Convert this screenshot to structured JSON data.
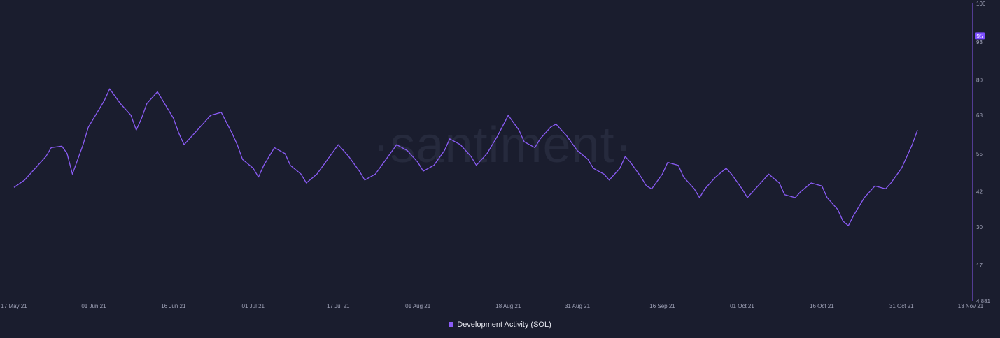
{
  "watermark": "·santiment·",
  "colors": {
    "background": "#1a1d2e",
    "line": "#8b5cf6",
    "badge": "#7c4dff",
    "axis": "#8b5cf6"
  },
  "chart_data": {
    "type": "line",
    "ylim": [
      4.881,
      106
    ],
    "y_ticks": [
      "106",
      "93",
      "80",
      "68",
      "55",
      "42",
      "30",
      "17",
      "4.881"
    ],
    "y_tick_values": [
      106,
      93,
      80,
      68,
      55,
      42,
      30,
      17,
      4.881
    ],
    "x_ticks": [
      "17 May 21",
      "01 Jun 21",
      "16 Jun 21",
      "01 Jul 21",
      "17 Jul 21",
      "01 Aug 21",
      "18 Aug 21",
      "31 Aug 21",
      "16 Sep 21",
      "01 Oct 21",
      "16 Oct 21",
      "31 Oct 21",
      "13 Nov 21"
    ],
    "x_tick_dates": [
      "2021-05-17",
      "2021-06-01",
      "2021-06-16",
      "2021-07-01",
      "2021-07-17",
      "2021-08-01",
      "2021-08-18",
      "2021-08-31",
      "2021-09-16",
      "2021-10-01",
      "2021-10-16",
      "2021-10-31",
      "2021-11-13"
    ],
    "current_value_label": "95",
    "current_value": 95,
    "series": [
      {
        "name": "Development Activity (SOL)",
        "points": [
          [
            "2021-05-17",
            43.5
          ],
          [
            "2021-05-19",
            46
          ],
          [
            "2021-05-21",
            50
          ],
          [
            "2021-05-23",
            54
          ],
          [
            "2021-05-24",
            57
          ],
          [
            "2021-05-26",
            57.5
          ],
          [
            "2021-05-27",
            55
          ],
          [
            "2021-05-28",
            48
          ],
          [
            "2021-05-30",
            58
          ],
          [
            "2021-05-31",
            64
          ],
          [
            "2021-06-02",
            70
          ],
          [
            "2021-06-03",
            73
          ],
          [
            "2021-06-04",
            77
          ],
          [
            "2021-06-06",
            72
          ],
          [
            "2021-06-08",
            68
          ],
          [
            "2021-06-09",
            63
          ],
          [
            "2021-06-10",
            67
          ],
          [
            "2021-06-11",
            72
          ],
          [
            "2021-06-13",
            76
          ],
          [
            "2021-06-14",
            73
          ],
          [
            "2021-06-16",
            67
          ],
          [
            "2021-06-17",
            62
          ],
          [
            "2021-06-18",
            58
          ],
          [
            "2021-06-20",
            62
          ],
          [
            "2021-06-22",
            66
          ],
          [
            "2021-06-23",
            68
          ],
          [
            "2021-06-25",
            69
          ],
          [
            "2021-06-27",
            62
          ],
          [
            "2021-06-28",
            58
          ],
          [
            "2021-06-29",
            53
          ],
          [
            "2021-07-01",
            50
          ],
          [
            "2021-07-02",
            47
          ],
          [
            "2021-07-03",
            51
          ],
          [
            "2021-07-05",
            57
          ],
          [
            "2021-07-07",
            55
          ],
          [
            "2021-07-08",
            51
          ],
          [
            "2021-07-10",
            48
          ],
          [
            "2021-07-11",
            45
          ],
          [
            "2021-07-13",
            48
          ],
          [
            "2021-07-15",
            53
          ],
          [
            "2021-07-17",
            58
          ],
          [
            "2021-07-19",
            54
          ],
          [
            "2021-07-21",
            49
          ],
          [
            "2021-07-22",
            46
          ],
          [
            "2021-07-24",
            48
          ],
          [
            "2021-07-26",
            53
          ],
          [
            "2021-07-28",
            58
          ],
          [
            "2021-07-30",
            56
          ],
          [
            "2021-08-01",
            52
          ],
          [
            "2021-08-02",
            49
          ],
          [
            "2021-08-04",
            51
          ],
          [
            "2021-08-06",
            56
          ],
          [
            "2021-08-07",
            60
          ],
          [
            "2021-08-09",
            58
          ],
          [
            "2021-08-11",
            54
          ],
          [
            "2021-08-12",
            51
          ],
          [
            "2021-08-14",
            55
          ],
          [
            "2021-08-16",
            61
          ],
          [
            "2021-08-18",
            68
          ],
          [
            "2021-08-20",
            63
          ],
          [
            "2021-08-21",
            59
          ],
          [
            "2021-08-23",
            57
          ],
          [
            "2021-08-24",
            60
          ],
          [
            "2021-08-26",
            64
          ],
          [
            "2021-08-27",
            65
          ],
          [
            "2021-08-29",
            61
          ],
          [
            "2021-08-31",
            56
          ],
          [
            "2021-09-02",
            53
          ],
          [
            "2021-09-03",
            50
          ],
          [
            "2021-09-05",
            48
          ],
          [
            "2021-09-06",
            46
          ],
          [
            "2021-09-08",
            50
          ],
          [
            "2021-09-09",
            54
          ],
          [
            "2021-09-10",
            52
          ],
          [
            "2021-09-12",
            47
          ],
          [
            "2021-09-13",
            44
          ],
          [
            "2021-09-14",
            43
          ],
          [
            "2021-09-16",
            48
          ],
          [
            "2021-09-17",
            52
          ],
          [
            "2021-09-19",
            51
          ],
          [
            "2021-09-20",
            47
          ],
          [
            "2021-09-22",
            43
          ],
          [
            "2021-09-23",
            40
          ],
          [
            "2021-09-24",
            43
          ],
          [
            "2021-09-26",
            47
          ],
          [
            "2021-09-28",
            50
          ],
          [
            "2021-09-29",
            48
          ],
          [
            "2021-10-01",
            43
          ],
          [
            "2021-10-02",
            40
          ],
          [
            "2021-10-03",
            42
          ],
          [
            "2021-10-05",
            46
          ],
          [
            "2021-10-06",
            48
          ],
          [
            "2021-10-08",
            45
          ],
          [
            "2021-10-09",
            41
          ],
          [
            "2021-10-11",
            40
          ],
          [
            "2021-10-12",
            42
          ],
          [
            "2021-10-14",
            45
          ],
          [
            "2021-10-16",
            44
          ],
          [
            "2021-10-17",
            40
          ],
          [
            "2021-10-19",
            36
          ],
          [
            "2021-10-20",
            32
          ],
          [
            "2021-10-21",
            30.5
          ],
          [
            "2021-10-22",
            34
          ],
          [
            "2021-10-24",
            40
          ],
          [
            "2021-10-26",
            44
          ],
          [
            "2021-10-28",
            43
          ],
          [
            "2021-10-29",
            45
          ],
          [
            "2021-10-31",
            50
          ],
          [
            "2021-11-02",
            58
          ],
          [
            "2021-11-03",
            63
          ]
        ]
      }
    ],
    "legend": {
      "placement": "bottom-center",
      "label": "Development Activity (SOL)"
    }
  }
}
